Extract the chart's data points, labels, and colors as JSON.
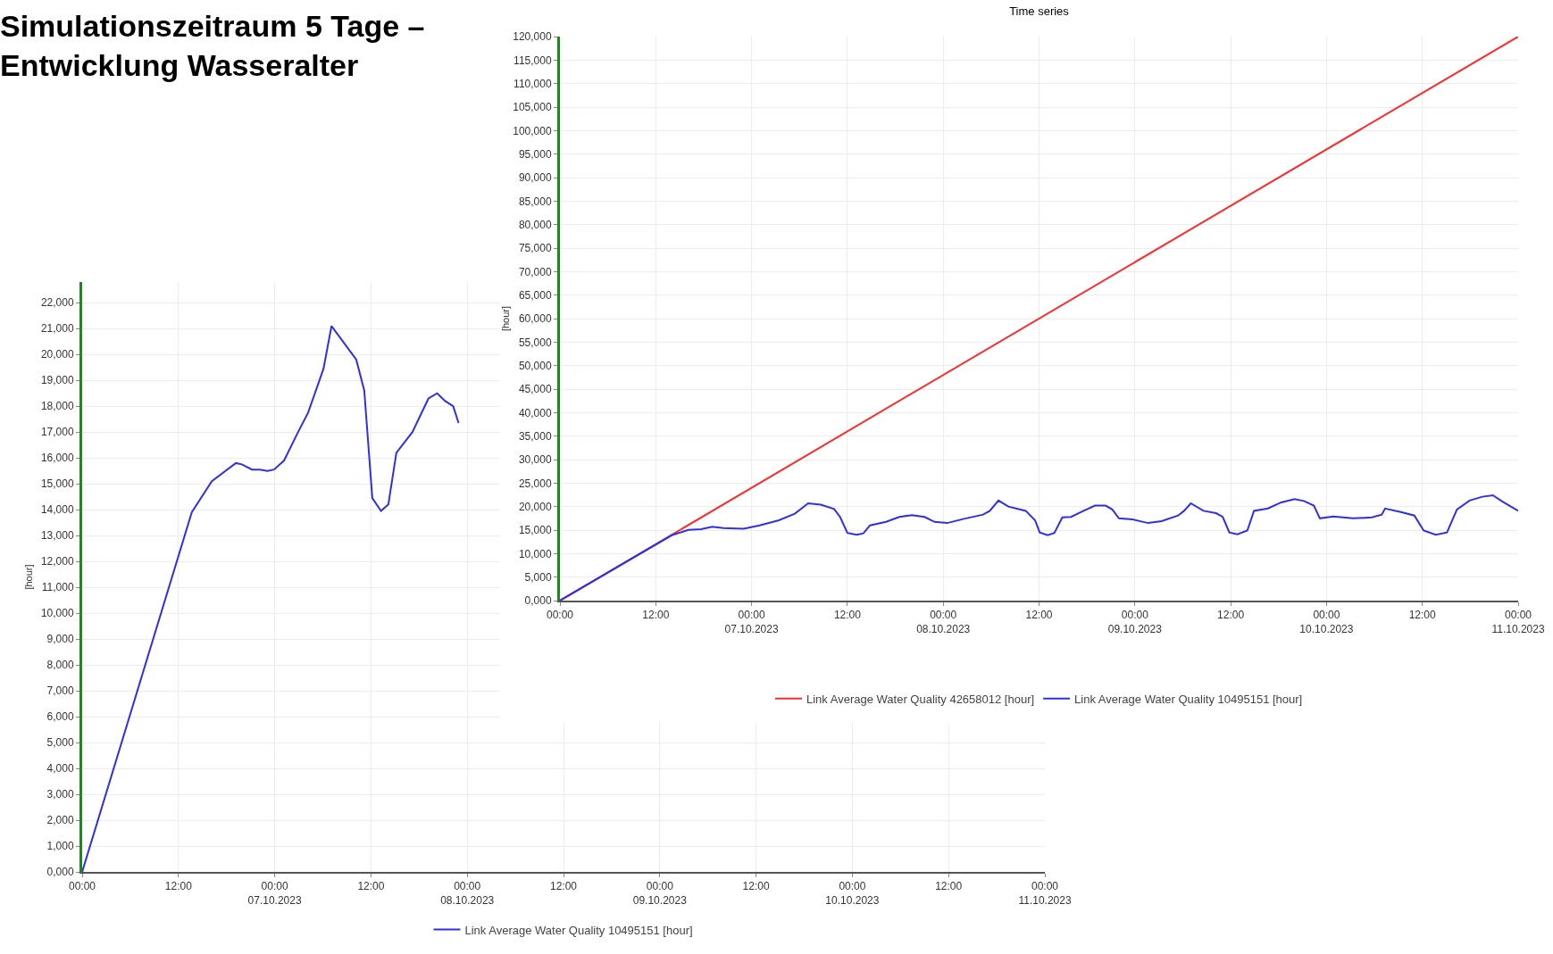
{
  "chart_data": [
    {
      "type": "line",
      "title": "Simulationszeitraum 5 Tage –\nEntwicklung Wasseralter",
      "ylabel": "[hour]",
      "legend": "bottom",
      "grid": true,
      "marker": "none",
      "line_style": "solid",
      "xlim": [
        "2023-10-06T00:00",
        "2023-10-11T00:00"
      ],
      "xticks": [
        {
          "value": "2023-10-06T00:00",
          "label": "00:00"
        },
        {
          "value": "2023-10-06T12:00",
          "label": "12:00"
        },
        {
          "value": "2023-10-07T00:00",
          "label": "00:00\n07.10.2023"
        },
        {
          "value": "2023-10-07T12:00",
          "label": "12:00"
        },
        {
          "value": "2023-10-08T00:00",
          "label": "00:00\n08.10.2023"
        },
        {
          "value": "2023-10-08T12:00",
          "label": "12:00"
        },
        {
          "value": "2023-10-09T00:00",
          "label": "00:00\n09.10.2023"
        },
        {
          "value": "2023-10-09T12:00",
          "label": "12:00"
        },
        {
          "value": "2023-10-10T00:00",
          "label": "00:00\n10.10.2023"
        },
        {
          "value": "2023-10-10T12:00",
          "label": "12:00"
        },
        {
          "value": "2023-10-11T00:00",
          "label": "00:00\n11.10.2023"
        }
      ],
      "ylim": [
        0,
        22.8
      ],
      "yticks": [
        {
          "value": 0,
          "label": "0,000"
        },
        {
          "value": 1,
          "label": "1,000"
        },
        {
          "value": 2,
          "label": "2,000"
        },
        {
          "value": 3,
          "label": "3,000"
        },
        {
          "value": 4,
          "label": "4,000"
        },
        {
          "value": 5,
          "label": "5,000"
        },
        {
          "value": 6,
          "label": "6,000"
        },
        {
          "value": 7,
          "label": "7,000"
        },
        {
          "value": 8,
          "label": "8,000"
        },
        {
          "value": 9,
          "label": "9,000"
        },
        {
          "value": 10,
          "label": "10,000"
        },
        {
          "value": 11,
          "label": "11,000"
        },
        {
          "value": 12,
          "label": "12,000"
        },
        {
          "value": 13,
          "label": "13,000"
        },
        {
          "value": 14,
          "label": "14,000"
        },
        {
          "value": 15,
          "label": "15,000"
        },
        {
          "value": 16,
          "label": "16,000"
        },
        {
          "value": 17,
          "label": "17,000"
        },
        {
          "value": 18,
          "label": "18,000"
        },
        {
          "value": 19,
          "label": "19,000"
        },
        {
          "value": 20,
          "label": "20,000"
        },
        {
          "value": 21,
          "label": "21,000"
        },
        {
          "value": 22,
          "label": "22,000"
        }
      ],
      "series": [
        {
          "name": "Link Average Water Quality 10495151 [hour]",
          "color": "#2f2fe8",
          "x": [
            "2023-10-06T00:00",
            "2023-10-06T13:40",
            "2023-10-06T16:10",
            "2023-10-06T19:10",
            "2023-10-06T19:55",
            "2023-10-06T21:10",
            "2023-10-06T22:10",
            "2023-10-06T23:05",
            "2023-10-06T23:55",
            "2023-10-07T01:10",
            "2023-10-07T02:55",
            "2023-10-07T04:10",
            "2023-10-07T06:05",
            "2023-10-07T07:05",
            "2023-10-07T10:10",
            "2023-10-07T11:10",
            "2023-10-07T12:10",
            "2023-10-07T13:15",
            "2023-10-07T14:10",
            "2023-10-07T15:10",
            "2023-10-07T17:10",
            "2023-10-07T19:10",
            "2023-10-07T20:15",
            "2023-10-07T21:15",
            "2023-10-07T22:15",
            "2023-10-07T22:55"
          ],
          "values": [
            0,
            13.9,
            15.1,
            15.8,
            15.75,
            15.55,
            15.55,
            15.5,
            15.55,
            15.9,
            17.0,
            17.75,
            19.45,
            21.1,
            19.8,
            18.6,
            14.45,
            13.95,
            14.2,
            16.2,
            17.0,
            18.3,
            18.5,
            18.2,
            18.0,
            17.35
          ]
        }
      ]
    },
    {
      "type": "line",
      "title": "Time series",
      "ylabel": "[hour]",
      "legend": "bottom",
      "grid": true,
      "marker": "none",
      "line_style": "solid",
      "xlim": [
        "2023-10-06T00:00",
        "2023-10-11T00:00"
      ],
      "xticks": [
        {
          "value": "2023-10-06T00:00",
          "label": "00:00"
        },
        {
          "value": "2023-10-06T12:00",
          "label": "12:00"
        },
        {
          "value": "2023-10-07T00:00",
          "label": "00:00\n07.10.2023"
        },
        {
          "value": "2023-10-07T12:00",
          "label": "12:00"
        },
        {
          "value": "2023-10-08T00:00",
          "label": "00:00\n08.10.2023"
        },
        {
          "value": "2023-10-08T12:00",
          "label": "12:00"
        },
        {
          "value": "2023-10-09T00:00",
          "label": "00:00\n09.10.2023"
        },
        {
          "value": "2023-10-09T12:00",
          "label": "12:00"
        },
        {
          "value": "2023-10-10T00:00",
          "label": "00:00\n10.10.2023"
        },
        {
          "value": "2023-10-10T12:00",
          "label": "12:00"
        },
        {
          "value": "2023-10-11T00:00",
          "label": "00:00\n11.10.2023"
        }
      ],
      "ylim": [
        0,
        120
      ],
      "yticks": [
        {
          "value": 0,
          "label": "0,000"
        },
        {
          "value": 5,
          "label": "5,000"
        },
        {
          "value": 10,
          "label": "10,000"
        },
        {
          "value": 15,
          "label": "15,000"
        },
        {
          "value": 20,
          "label": "20,000"
        },
        {
          "value": 25,
          "label": "25,000"
        },
        {
          "value": 30,
          "label": "30,000"
        },
        {
          "value": 35,
          "label": "35,000"
        },
        {
          "value": 40,
          "label": "40,000"
        },
        {
          "value": 45,
          "label": "45,000"
        },
        {
          "value": 50,
          "label": "50,000"
        },
        {
          "value": 55,
          "label": "55,000"
        },
        {
          "value": 60,
          "label": "60,000"
        },
        {
          "value": 65,
          "label": "65,000"
        },
        {
          "value": 70,
          "label": "70,000"
        },
        {
          "value": 75,
          "label": "75,000"
        },
        {
          "value": 80,
          "label": "80,000"
        },
        {
          "value": 85,
          "label": "85,000"
        },
        {
          "value": 90,
          "label": "90,000"
        },
        {
          "value": 95,
          "label": "95,000"
        },
        {
          "value": 100,
          "label": "100,000"
        },
        {
          "value": 105,
          "label": "105,000"
        },
        {
          "value": 110,
          "label": "110,000"
        },
        {
          "value": 115,
          "label": "115,000"
        },
        {
          "value": 120,
          "label": "120,000"
        }
      ],
      "series": [
        {
          "name": "Link Average Water Quality 42658012 [hour]",
          "color": "#ff2a2a",
          "x": [
            "2023-10-06T00:00",
            "2023-10-11T00:00"
          ],
          "values": [
            0,
            120
          ]
        },
        {
          "name": "Link Average Water Quality 10495151 [hour]",
          "color": "#2f2fe8",
          "x": [
            "2023-10-06T00:00",
            "2023-10-06T14:00",
            "2023-10-06T16:05",
            "2023-10-06T17:40",
            "2023-10-06T19:05",
            "2023-10-06T20:30",
            "2023-10-06T23:00",
            "2023-10-07T01:00",
            "2023-10-07T03:25",
            "2023-10-07T05:25",
            "2023-10-07T07:05",
            "2023-10-07T08:40",
            "2023-10-07T10:20",
            "2023-10-07T11:05",
            "2023-10-07T12:00",
            "2023-10-07T13:10",
            "2023-10-07T14:00",
            "2023-10-07T14:50",
            "2023-10-07T16:50",
            "2023-10-07T18:30",
            "2023-10-07T20:05",
            "2023-10-07T21:40",
            "2023-10-07T22:55",
            "2023-10-08T00:30",
            "2023-10-08T02:35",
            "2023-10-08T05:00",
            "2023-10-08T05:50",
            "2023-10-08T06:55",
            "2023-10-08T08:10",
            "2023-10-08T10:20",
            "2023-10-08T11:30",
            "2023-10-08T12:05",
            "2023-10-08T13:05",
            "2023-10-08T13:55",
            "2023-10-08T14:55",
            "2023-10-08T16:00",
            "2023-10-08T17:35",
            "2023-10-08T19:00",
            "2023-10-08T20:20",
            "2023-10-08T21:10",
            "2023-10-08T22:00",
            "2023-10-08T23:40",
            "2023-10-09T01:40",
            "2023-10-09T03:20",
            "2023-10-09T05:25",
            "2023-10-09T06:10",
            "2023-10-09T07:00",
            "2023-10-09T08:35",
            "2023-10-09T10:10",
            "2023-10-09T11:00",
            "2023-10-09T11:50",
            "2023-10-09T12:50",
            "2023-10-09T14:05",
            "2023-10-09T14:55",
            "2023-10-09T16:40",
            "2023-10-09T18:20",
            "2023-10-09T20:00",
            "2023-10-09T21:10",
            "2023-10-09T22:25",
            "2023-10-09T23:10",
            "2023-10-10T00:50",
            "2023-10-10T03:20",
            "2023-10-10T05:40",
            "2023-10-10T06:55",
            "2023-10-10T07:20",
            "2023-10-10T09:25",
            "2023-10-10T11:00",
            "2023-10-10T12:10",
            "2023-10-10T13:40",
            "2023-10-10T15:05",
            "2023-10-10T16:20",
            "2023-10-10T17:55",
            "2023-10-10T19:30",
            "2023-10-10T20:50",
            "2023-10-10T22:00",
            "2023-10-11T00:00"
          ],
          "values": [
            0,
            13.9,
            15.05,
            15.2,
            15.7,
            15.45,
            15.3,
            16.0,
            17.1,
            18.5,
            20.7,
            20.4,
            19.5,
            17.8,
            14.4,
            14.0,
            14.3,
            16.0,
            16.75,
            17.8,
            18.2,
            17.8,
            16.75,
            16.5,
            17.4,
            18.3,
            19.1,
            21.3,
            20.0,
            19.1,
            17.1,
            14.5,
            13.9,
            14.4,
            17.7,
            17.8,
            19.1,
            20.2,
            20.2,
            19.4,
            17.5,
            17.3,
            16.5,
            16.9,
            18.1,
            19.1,
            20.7,
            19.1,
            18.6,
            17.8,
            14.5,
            14.1,
            14.9,
            19.1,
            19.6,
            20.9,
            21.6,
            21.2,
            20.2,
            17.5,
            17.9,
            17.5,
            17.7,
            18.3,
            19.6,
            18.8,
            18.1,
            14.9,
            14.0,
            14.5,
            19.4,
            21.3,
            22.1,
            22.4,
            21.1,
            19.1
          ]
        }
      ]
    }
  ]
}
